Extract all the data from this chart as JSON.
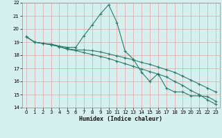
{
  "xlabel": "Humidex (Indice chaleur)",
  "bg_color": "#d6f0f0",
  "plot_bg_color": "#d6f0f0",
  "grid_color": "#e8a0a0",
  "line_color": "#2a7a6a",
  "xlim": [
    -0.5,
    23.5
  ],
  "ylim": [
    14,
    22
  ],
  "xticks": [
    0,
    1,
    2,
    3,
    4,
    5,
    6,
    7,
    8,
    9,
    10,
    11,
    12,
    13,
    14,
    15,
    16,
    17,
    18,
    19,
    20,
    21,
    22,
    23
  ],
  "yticks": [
    14,
    15,
    16,
    17,
    18,
    19,
    20,
    21,
    22
  ],
  "line1_x": [
    0,
    1,
    2,
    3,
    4,
    5,
    6,
    7,
    8,
    9,
    10,
    11,
    12,
    13,
    14,
    15,
    16,
    17,
    18,
    19,
    20,
    21,
    22,
    23
  ],
  "line1_y": [
    19.4,
    19.0,
    18.9,
    18.85,
    18.7,
    18.6,
    18.6,
    19.5,
    20.3,
    21.15,
    21.85,
    20.5,
    18.3,
    17.7,
    16.7,
    16.0,
    16.6,
    15.5,
    15.2,
    15.2,
    14.9,
    14.9,
    14.85,
    14.5
  ],
  "line2_x": [
    0,
    1,
    2,
    3,
    4,
    5,
    6,
    7,
    8,
    9,
    10,
    11,
    12,
    13,
    14,
    15,
    16,
    17,
    18,
    19,
    20,
    21,
    22,
    23
  ],
  "line2_y": [
    19.4,
    19.0,
    18.9,
    18.8,
    18.65,
    18.5,
    18.4,
    18.4,
    18.35,
    18.25,
    18.1,
    17.95,
    17.8,
    17.65,
    17.45,
    17.3,
    17.1,
    16.9,
    16.7,
    16.4,
    16.1,
    15.8,
    15.5,
    15.2
  ],
  "line3_x": [
    0,
    1,
    2,
    3,
    4,
    5,
    6,
    7,
    8,
    9,
    10,
    11,
    12,
    13,
    14,
    15,
    16,
    17,
    18,
    19,
    20,
    21,
    22,
    23
  ],
  "line3_y": [
    19.4,
    19.0,
    18.9,
    18.8,
    18.65,
    18.45,
    18.35,
    18.2,
    18.05,
    17.9,
    17.75,
    17.55,
    17.35,
    17.15,
    16.95,
    16.75,
    16.55,
    16.35,
    16.0,
    15.7,
    15.3,
    15.0,
    14.6,
    14.25
  ]
}
